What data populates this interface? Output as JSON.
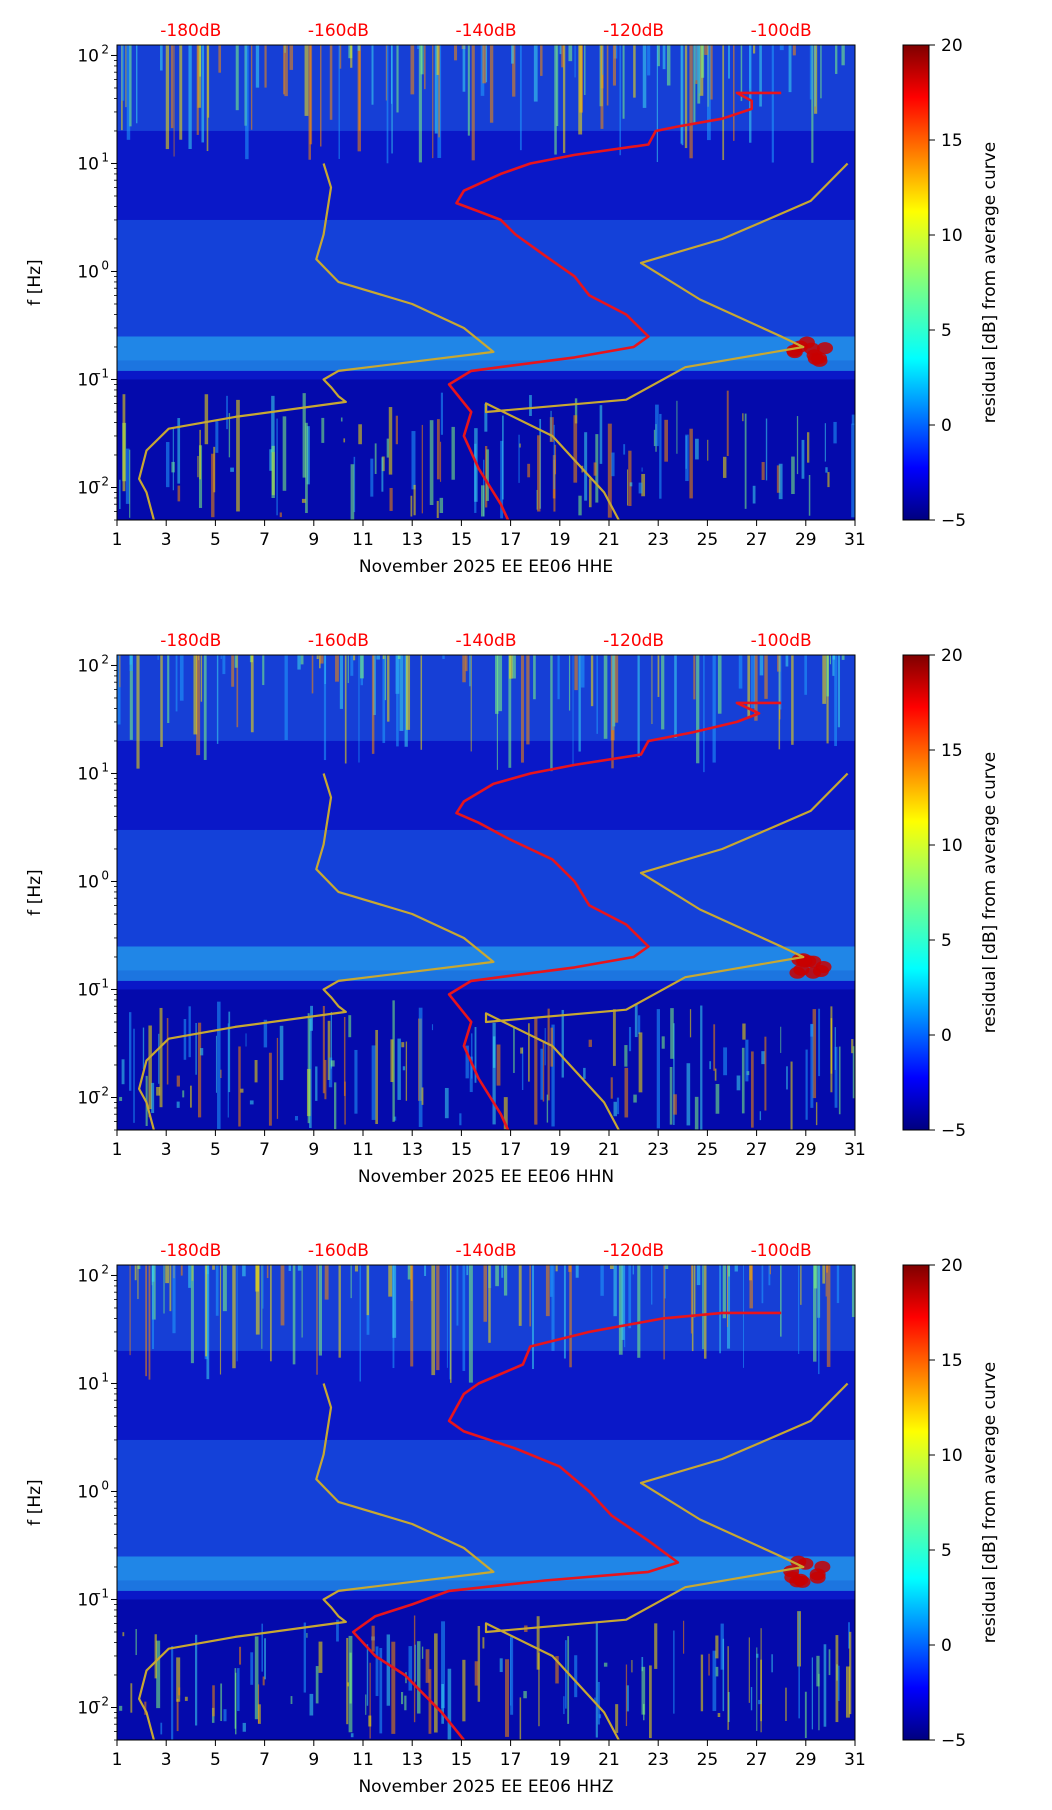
{
  "figure": {
    "colorbar_label": "residual [dB] from average curve",
    "colorbar_ticks": [
      "−5",
      "0",
      "5",
      "10",
      "15",
      "20"
    ],
    "y_label": "f [Hz]",
    "y_ticks": [
      "10",
      "10",
      "10",
      "10",
      "10"
    ],
    "y_tick_exponents": [
      "2",
      "1",
      "0",
      "−1",
      "−2"
    ],
    "x_ticks": [
      "1",
      "3",
      "5",
      "7",
      "9",
      "11",
      "13",
      "15",
      "17",
      "19",
      "21",
      "23",
      "25",
      "27",
      "29",
      "31"
    ],
    "db_labels": [
      "-180dB",
      "-160dB",
      "-140dB",
      "-120dB",
      "-100dB"
    ],
    "colors": {
      "db_label": "#ff0000",
      "red_curve": "#e8141c",
      "model_curve": "#c8a832"
    }
  },
  "chart_data": [
    {
      "type": "heatmap",
      "title": "",
      "xlabel": "November 2025 EE EE06  HHE",
      "ylabel": "f [Hz]",
      "xlim": [
        1,
        31
      ],
      "ylim": [
        0.005,
        125
      ],
      "yscale": "log",
      "colorbar": {
        "label": "residual [dB] from average curve",
        "range": [
          -5,
          20
        ]
      },
      "top_axis_db": [
        -180,
        -160,
        -140,
        -120,
        -100
      ],
      "series": [
        {
          "name": "station PSD level (dB)",
          "color": "#e8141c",
          "points": [
            [
              -100,
              45
            ],
            [
              -106,
              45
            ],
            [
              -104,
              38
            ],
            [
              -104,
              32
            ],
            [
              -108,
              26
            ],
            [
              -114,
              22
            ],
            [
              -117,
              20
            ],
            [
              -118,
              15
            ],
            [
              -128,
              12
            ],
            [
              -134,
              10
            ],
            [
              -138,
              8
            ],
            [
              -143,
              5.6
            ],
            [
              -144,
              4.3
            ],
            [
              -141,
              3.6
            ],
            [
              -138,
              3
            ],
            [
              -136,
              2.2
            ],
            [
              -132,
              1.4
            ],
            [
              -128,
              0.9
            ],
            [
              -126,
              0.6
            ],
            [
              -121,
              0.4
            ],
            [
              -118,
              0.25
            ],
            [
              -120,
              0.2
            ],
            [
              -128,
              0.16
            ],
            [
              -142,
              0.12
            ],
            [
              -145,
              0.09
            ],
            [
              -142,
              0.05
            ],
            [
              -143,
              0.03
            ],
            [
              -141,
              0.015
            ],
            [
              -138,
              0.007
            ],
            [
              -137,
              0.005
            ]
          ]
        },
        {
          "name": "noise model (dB)",
          "color": "#c8a832",
          "points": [
            [
              -162,
              10
            ],
            [
              -161,
              6
            ],
            [
              -162,
              2.2
            ],
            [
              -163,
              1.3
            ],
            [
              -160,
              0.8
            ],
            [
              -150,
              0.5
            ],
            [
              -143,
              0.3
            ],
            [
              -139,
              0.18
            ],
            [
              -160,
              0.12
            ],
            [
              -162,
              0.1
            ],
            [
              -161,
              0.085
            ],
            [
              -160,
              0.07
            ],
            [
              -159,
              0.062
            ],
            [
              -174,
              0.045
            ],
            [
              -183,
              0.035
            ],
            [
              -186,
              0.022
            ],
            [
              -187,
              0.012
            ],
            [
              -186,
              0.009
            ],
            [
              -185,
              0.005
            ]
          ]
        },
        {
          "name": "noise model high (dB)",
          "color": "#c8a832",
          "points": [
            [
              -91,
              10
            ],
            [
              -96,
              4.5
            ],
            [
              -101,
              3.2
            ],
            [
              -108,
              2
            ],
            [
              -119,
              1.2
            ],
            [
              -111,
              0.55
            ],
            [
              -100,
              0.25
            ],
            [
              -97,
              0.2
            ],
            [
              -113,
              0.13
            ],
            [
              -121,
              0.065
            ],
            [
              -140,
              0.05
            ],
            [
              -140,
              0.06
            ],
            [
              -131,
              0.03
            ],
            [
              -124,
              0.009
            ],
            [
              -122,
              0.005
            ]
          ]
        }
      ]
    },
    {
      "type": "heatmap",
      "title": "",
      "xlabel": "November 2025 EE EE06  HHN",
      "ylabel": "f [Hz]",
      "xlim": [
        1,
        31
      ],
      "ylim": [
        0.005,
        125
      ],
      "yscale": "log",
      "colorbar": {
        "label": "residual [dB] from average curve",
        "range": [
          -5,
          20
        ]
      },
      "top_axis_db": [
        -180,
        -160,
        -140,
        -120,
        -100
      ],
      "series": [
        {
          "name": "station PSD level (dB)",
          "color": "#e8141c",
          "points": [
            [
              -100,
              45
            ],
            [
              -106,
              45
            ],
            [
              -103,
              36
            ],
            [
              -106,
              30
            ],
            [
              -112,
              24
            ],
            [
              -118,
              20
            ],
            [
              -119,
              15
            ],
            [
              -128,
              12
            ],
            [
              -134,
              10
            ],
            [
              -139,
              8
            ],
            [
              -143,
              5.5
            ],
            [
              -144,
              4.3
            ],
            [
              -141,
              3.5
            ],
            [
              -137,
              2.5
            ],
            [
              -131,
              1.6
            ],
            [
              -128,
              1.0
            ],
            [
              -126,
              0.6
            ],
            [
              -121,
              0.4
            ],
            [
              -118,
              0.25
            ],
            [
              -120,
              0.2
            ],
            [
              -128,
              0.16
            ],
            [
              -142,
              0.12
            ],
            [
              -145,
              0.09
            ],
            [
              -142,
              0.05
            ],
            [
              -143,
              0.03
            ],
            [
              -141,
              0.015
            ],
            [
              -138,
              0.007
            ],
            [
              -137,
              0.005
            ]
          ]
        },
        {
          "name": "noise model (dB)",
          "color": "#c8a832",
          "points": [
            [
              -162,
              10
            ],
            [
              -161,
              6
            ],
            [
              -162,
              2.2
            ],
            [
              -163,
              1.3
            ],
            [
              -160,
              0.8
            ],
            [
              -150,
              0.5
            ],
            [
              -143,
              0.3
            ],
            [
              -139,
              0.18
            ],
            [
              -160,
              0.12
            ],
            [
              -162,
              0.1
            ],
            [
              -161,
              0.085
            ],
            [
              -160,
              0.07
            ],
            [
              -159,
              0.062
            ],
            [
              -174,
              0.045
            ],
            [
              -183,
              0.035
            ],
            [
              -186,
              0.022
            ],
            [
              -187,
              0.012
            ],
            [
              -186,
              0.009
            ],
            [
              -185,
              0.005
            ]
          ]
        },
        {
          "name": "noise model high (dB)",
          "color": "#c8a832",
          "points": [
            [
              -91,
              10
            ],
            [
              -96,
              4.5
            ],
            [
              -101,
              3.2
            ],
            [
              -108,
              2
            ],
            [
              -119,
              1.2
            ],
            [
              -111,
              0.55
            ],
            [
              -100,
              0.25
            ],
            [
              -97,
              0.2
            ],
            [
              -113,
              0.13
            ],
            [
              -121,
              0.065
            ],
            [
              -140,
              0.05
            ],
            [
              -140,
              0.06
            ],
            [
              -131,
              0.03
            ],
            [
              -124,
              0.009
            ],
            [
              -122,
              0.005
            ]
          ]
        }
      ]
    },
    {
      "type": "heatmap",
      "title": "",
      "xlabel": "November 2025 EE EE06  HHZ",
      "ylabel": "f [Hz]",
      "xlim": [
        1,
        31
      ],
      "ylim": [
        0.005,
        125
      ],
      "yscale": "log",
      "colorbar": {
        "label": "residual [dB] from average curve",
        "range": [
          -5,
          20
        ]
      },
      "top_axis_db": [
        -180,
        -160,
        -140,
        -120,
        -100
      ],
      "series": [
        {
          "name": "station PSD level (dB)",
          "color": "#e8141c",
          "points": [
            [
              -100,
              45
            ],
            [
              -108,
              45
            ],
            [
              -116,
              40
            ],
            [
              -126,
              30
            ],
            [
              -134,
              22
            ],
            [
              -135,
              15
            ],
            [
              -141,
              10
            ],
            [
              -143,
              8
            ],
            [
              -144,
              6
            ],
            [
              -145,
              4.5
            ],
            [
              -143,
              3.6
            ],
            [
              -136,
              2.5
            ],
            [
              -130,
              1.7
            ],
            [
              -126,
              1.0
            ],
            [
              -123,
              0.6
            ],
            [
              -118,
              0.35
            ],
            [
              -114,
              0.22
            ],
            [
              -118,
              0.18
            ],
            [
              -132,
              0.15
            ],
            [
              -145,
              0.12
            ],
            [
              -150,
              0.09
            ],
            [
              -155,
              0.07
            ],
            [
              -158,
              0.05
            ],
            [
              -155,
              0.03
            ],
            [
              -151,
              0.02
            ],
            [
              -146,
              0.009
            ],
            [
              -143,
              0.005
            ]
          ]
        },
        {
          "name": "noise model (dB)",
          "color": "#c8a832",
          "points": [
            [
              -162,
              10
            ],
            [
              -161,
              6
            ],
            [
              -162,
              2.2
            ],
            [
              -163,
              1.3
            ],
            [
              -160,
              0.8
            ],
            [
              -150,
              0.5
            ],
            [
              -143,
              0.3
            ],
            [
              -139,
              0.18
            ],
            [
              -160,
              0.12
            ],
            [
              -162,
              0.1
            ],
            [
              -161,
              0.085
            ],
            [
              -160,
              0.07
            ],
            [
              -159,
              0.062
            ],
            [
              -174,
              0.045
            ],
            [
              -183,
              0.035
            ],
            [
              -186,
              0.022
            ],
            [
              -187,
              0.012
            ],
            [
              -186,
              0.009
            ],
            [
              -185,
              0.005
            ]
          ]
        },
        {
          "name": "noise model high (dB)",
          "color": "#c8a832",
          "points": [
            [
              -91,
              10
            ],
            [
              -96,
              4.5
            ],
            [
              -101,
              3.2
            ],
            [
              -108,
              2
            ],
            [
              -119,
              1.2
            ],
            [
              -111,
              0.55
            ],
            [
              -100,
              0.25
            ],
            [
              -97,
              0.2
            ],
            [
              -113,
              0.13
            ],
            [
              -121,
              0.065
            ],
            [
              -140,
              0.05
            ],
            [
              -140,
              0.06
            ],
            [
              -131,
              0.03
            ],
            [
              -124,
              0.009
            ],
            [
              -122,
              0.005
            ]
          ]
        }
      ]
    }
  ]
}
